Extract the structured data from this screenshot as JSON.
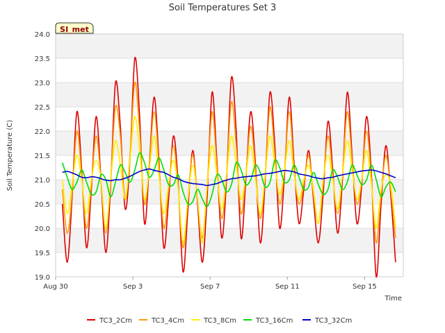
{
  "chart_data": {
    "type": "line",
    "title": "Soil Temperatures Set 3",
    "xlabel": "Time",
    "ylabel": "Soil Temperature (C)",
    "badge": "SI_met",
    "ylim": [
      19.0,
      24.0
    ],
    "yticks": [
      "19.0",
      "19.5",
      "20.0",
      "20.5",
      "21.0",
      "21.5",
      "22.0",
      "22.5",
      "23.0",
      "23.5",
      "24.0"
    ],
    "xlim_days": [
      0,
      18
    ],
    "xticks": [
      {
        "label": "Aug 30",
        "day": 0
      },
      {
        "label": "Sep 3",
        "day": 4
      },
      {
        "label": "Sep 7",
        "day": 8
      },
      {
        "label": "Sep 11",
        "day": 12
      },
      {
        "label": "Sep 15",
        "day": 16
      }
    ],
    "grid": true,
    "legend_position": "bottom",
    "series": [
      {
        "name": "TC3_2Cm",
        "color": "#dd0000",
        "step_days": 0.25,
        "x_start_day": 0.35,
        "values": [
          20.5,
          19.3,
          20.6,
          22.4,
          21.2,
          19.6,
          20.8,
          22.3,
          21.0,
          19.5,
          20.9,
          23.0,
          22.1,
          20.4,
          21.4,
          23.5,
          22.3,
          20.1,
          21.3,
          22.7,
          21.4,
          19.6,
          20.6,
          21.9,
          20.9,
          19.1,
          20.4,
          21.6,
          20.5,
          19.3,
          20.7,
          22.8,
          21.4,
          19.8,
          21.0,
          23.1,
          22.0,
          19.8,
          21.0,
          22.4,
          21.3,
          19.7,
          21.0,
          22.8,
          21.7,
          20.0,
          21.1,
          22.7,
          21.3,
          20.1,
          20.8,
          21.6,
          20.6,
          19.7,
          20.7,
          22.2,
          21.2,
          19.9,
          21.0,
          22.8,
          21.5,
          20.1,
          20.9,
          22.3,
          21.1,
          19.0,
          20.5,
          21.7,
          20.7,
          19.3
        ]
      },
      {
        "name": "TC3_4Cm",
        "color": "#ff9900",
        "step_days": 0.25,
        "x_start_day": 0.35,
        "values": [
          20.8,
          19.9,
          20.7,
          22.0,
          21.1,
          20.0,
          20.9,
          21.9,
          21.0,
          19.9,
          21.0,
          22.5,
          21.9,
          20.6,
          21.5,
          23.0,
          22.0,
          20.5,
          21.3,
          22.4,
          21.3,
          20.0,
          20.8,
          21.7,
          20.8,
          19.6,
          20.6,
          21.5,
          20.6,
          19.8,
          20.9,
          22.4,
          21.3,
          20.2,
          21.1,
          22.6,
          21.7,
          20.3,
          21.1,
          22.1,
          21.2,
          20.2,
          21.1,
          22.5,
          21.5,
          20.5,
          21.2,
          22.4,
          21.2,
          20.5,
          20.9,
          21.5,
          20.7,
          20.1,
          20.9,
          21.9,
          21.1,
          20.3,
          21.1,
          22.4,
          21.4,
          20.5,
          21.0,
          22.0,
          21.0,
          19.7,
          20.7,
          21.5,
          20.8,
          19.8
        ]
      },
      {
        "name": "TC3_8Cm",
        "color": "#ffee00",
        "step_days": 0.25,
        "x_start_day": 0.35,
        "values": [
          21.0,
          20.3,
          20.9,
          21.5,
          21.0,
          20.3,
          21.0,
          21.4,
          21.0,
          20.0,
          21.0,
          21.8,
          21.3,
          20.6,
          21.4,
          22.3,
          21.6,
          20.6,
          21.2,
          21.9,
          21.1,
          20.3,
          20.9,
          21.4,
          20.8,
          19.7,
          20.6,
          21.3,
          20.6,
          19.7,
          20.9,
          21.7,
          21.1,
          20.4,
          21.1,
          21.9,
          21.3,
          20.6,
          21.1,
          21.7,
          21.0,
          20.3,
          21.1,
          21.9,
          21.3,
          20.7,
          21.2,
          21.8,
          21.1,
          20.6,
          21.0,
          21.3,
          20.8,
          20.1,
          21.0,
          21.5,
          21.0,
          20.4,
          21.1,
          21.8,
          21.2,
          20.6,
          21.0,
          21.6,
          20.9,
          20.0,
          20.8,
          21.1,
          20.9,
          20.0
        ]
      },
      {
        "name": "TC3_16Cm",
        "color": "#00dd00",
        "step_days": 0.25,
        "x_start_day": 0.35,
        "values": [
          21.35,
          21.05,
          20.8,
          20.95,
          21.2,
          20.95,
          20.7,
          20.75,
          21.1,
          21.0,
          20.65,
          20.95,
          21.3,
          21.15,
          20.95,
          21.2,
          21.55,
          21.35,
          21.05,
          21.2,
          21.45,
          21.2,
          20.9,
          20.9,
          21.1,
          20.75,
          20.5,
          20.55,
          20.8,
          20.6,
          20.45,
          20.7,
          21.1,
          21.0,
          20.75,
          20.9,
          21.35,
          21.2,
          20.9,
          21.0,
          21.3,
          21.15,
          20.85,
          20.95,
          21.4,
          21.25,
          20.95,
          21.0,
          21.3,
          21.05,
          20.8,
          20.85,
          21.15,
          20.9,
          20.7,
          20.8,
          21.2,
          21.05,
          20.8,
          20.95,
          21.3,
          21.1,
          20.9,
          21.0,
          21.3,
          21.0,
          20.65,
          20.85,
          20.95,
          20.75
        ]
      },
      {
        "name": "TC3_32Cm",
        "color": "#0000cc",
        "step_days": 0.25,
        "x_start_day": 0.35,
        "values": [
          21.15,
          21.17,
          21.14,
          21.1,
          21.05,
          21.04,
          21.06,
          21.05,
          21.02,
          20.99,
          20.98,
          21.0,
          21.0,
          21.03,
          21.07,
          21.12,
          21.17,
          21.2,
          21.22,
          21.19,
          21.17,
          21.15,
          21.1,
          21.05,
          21.02,
          20.97,
          20.94,
          20.92,
          20.91,
          20.9,
          20.88,
          20.9,
          20.92,
          20.96,
          20.99,
          21.02,
          21.03,
          21.05,
          21.06,
          21.07,
          21.08,
          21.1,
          21.12,
          21.13,
          21.15,
          21.17,
          21.19,
          21.18,
          21.16,
          21.12,
          21.1,
          21.08,
          21.05,
          21.03,
          21.02,
          21.04,
          21.05,
          21.08,
          21.1,
          21.12,
          21.14,
          21.16,
          21.18,
          21.19,
          21.2,
          21.18,
          21.15,
          21.12,
          21.08,
          21.04
        ]
      }
    ]
  }
}
